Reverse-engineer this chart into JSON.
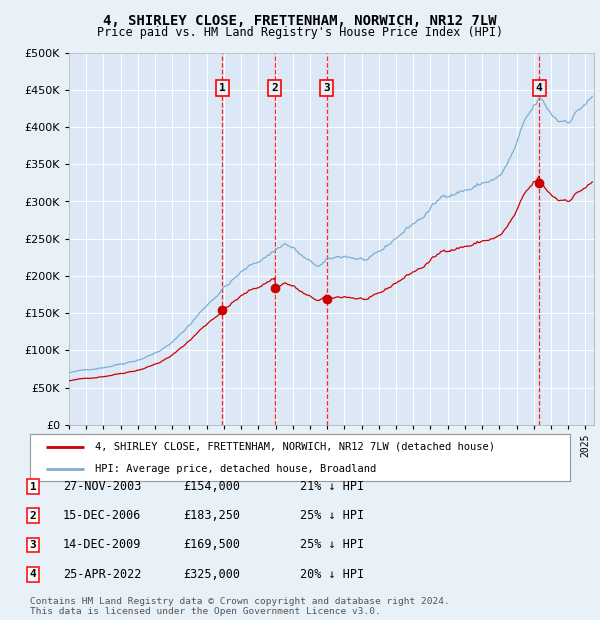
{
  "title": "4, SHIRLEY CLOSE, FRETTENHAM, NORWICH, NR12 7LW",
  "subtitle": "Price paid vs. HM Land Registry's House Price Index (HPI)",
  "legend_line1": "4, SHIRLEY CLOSE, FRETTENHAM, NORWICH, NR12 7LW (detached house)",
  "legend_line2": "HPI: Average price, detached house, Broadland",
  "footer1": "Contains HM Land Registry data © Crown copyright and database right 2024.",
  "footer2": "This data is licensed under the Open Government Licence v3.0.",
  "sales": [
    {
      "num": 1,
      "date": "27-NOV-2003",
      "price": "£154,000",
      "pct": "21% ↓ HPI",
      "year": 2003.91
    },
    {
      "num": 2,
      "date": "15-DEC-2006",
      "price": "£183,250",
      "pct": "25% ↓ HPI",
      "year": 2006.96
    },
    {
      "num": 3,
      "date": "14-DEC-2009",
      "price": "£169,500",
      "pct": "25% ↓ HPI",
      "year": 2009.96
    },
    {
      "num": 4,
      "date": "25-APR-2022",
      "price": "£325,000",
      "pct": "20% ↓ HPI",
      "year": 2022.32
    }
  ],
  "sale_prices": [
    154000,
    183250,
    169500,
    325000
  ],
  "ylim": [
    0,
    500000
  ],
  "yticks": [
    0,
    50000,
    100000,
    150000,
    200000,
    250000,
    300000,
    350000,
    400000,
    450000,
    500000
  ],
  "xlim_start": 1995.0,
  "xlim_end": 2025.5,
  "background_color": "#e8f0f8",
  "plot_bg": "#dce8f5",
  "red_color": "#cc0000",
  "blue_color": "#7aafd4",
  "grid_color": "#ffffff"
}
